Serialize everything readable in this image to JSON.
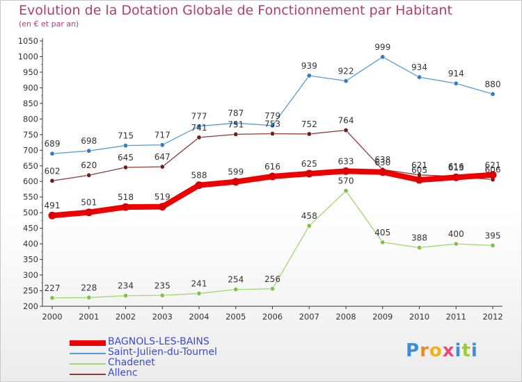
{
  "title": "Evolution de la Dotation Globale de Fonctionnement par Habitant",
  "subtitle": "(en € et par an)",
  "chart_data": {
    "type": "line",
    "x": [
      "2000",
      "2001",
      "2002",
      "2003",
      "2004",
      "2005",
      "2006",
      "2007",
      "2008",
      "2009",
      "2010",
      "2011",
      "2012"
    ],
    "ylim": [
      200,
      1050
    ],
    "yticks": [
      "200",
      "250",
      "300",
      "350",
      "400",
      "450",
      "500",
      "550",
      "600",
      "650",
      "700",
      "750",
      "800",
      "850",
      "900",
      "950",
      "1000",
      "1050"
    ],
    "grid": false,
    "legend_placement": "bottom-left",
    "series": [
      {
        "name": "Saint-Julien-du-Tournel",
        "color": "#5b9bd5",
        "marker_color": "#2f7ec4",
        "width": 1.3,
        "values": [
          689,
          698,
          715,
          717,
          777,
          787,
          779,
          939,
          922,
          999,
          934,
          914,
          880
        ],
        "labels": [
          "689",
          "698",
          "715",
          "717",
          "777",
          "787",
          "779",
          "939",
          "922",
          "999",
          "934",
          "914",
          "880"
        ]
      },
      {
        "name": "Allenc",
        "color": "#8b3a3a",
        "marker_color": "#6b1f1f",
        "width": 1.3,
        "values": [
          602,
          620,
          645,
          647,
          741,
          751,
          753,
          752,
          764,
          638,
          621,
          616,
          606
        ],
        "labels": [
          "602",
          "620",
          "645",
          "647",
          "741",
          "751",
          "753",
          "752",
          "764",
          "638",
          "621",
          "616",
          "606"
        ]
      },
      {
        "name": "Chadenet",
        "color": "#9fd86b",
        "marker_color": "#7fc24a",
        "width": 1.3,
        "values": [
          227,
          228,
          234,
          235,
          241,
          254,
          256,
          458,
          570,
          405,
          388,
          400,
          395
        ],
        "labels": [
          "227",
          "228",
          "234",
          "235",
          "241",
          "254",
          "256",
          "458",
          "570",
          "405",
          "388",
          "400",
          "395"
        ]
      },
      {
        "name": "BAGNOLS-LES-BAINS",
        "color": "#ee0000",
        "marker_color": "#dd0000",
        "width": 8,
        "values": [
          491,
          501,
          518,
          519,
          588,
          599,
          616,
          625,
          633,
          630,
          605,
          613,
          621
        ],
        "labels": [
          "491",
          "501",
          "518",
          "519",
          "588",
          "599",
          "616",
          "625",
          "633",
          "630",
          "605",
          "613",
          "621"
        ]
      }
    ],
    "legend": [
      {
        "name": "BAGNOLS-LES-BAINS",
        "color": "#ee0000",
        "width": 8
      },
      {
        "name": "Saint-Julien-du-Tournel",
        "color": "#5b9bd5",
        "width": 2
      },
      {
        "name": "Chadenet",
        "color": "#9fd86b",
        "width": 2
      },
      {
        "name": "Allenc",
        "color": "#8b3a3a",
        "width": 2
      }
    ]
  },
  "logo": {
    "letters": [
      "P",
      "r",
      "o",
      "x",
      "i",
      "t",
      "i"
    ],
    "colors": [
      "#3b8fd8",
      "#f08a1c",
      "#f0b21c",
      "#e84a7a",
      "#3b8fd8",
      "#9acb3c",
      "#3b8fd8"
    ]
  }
}
